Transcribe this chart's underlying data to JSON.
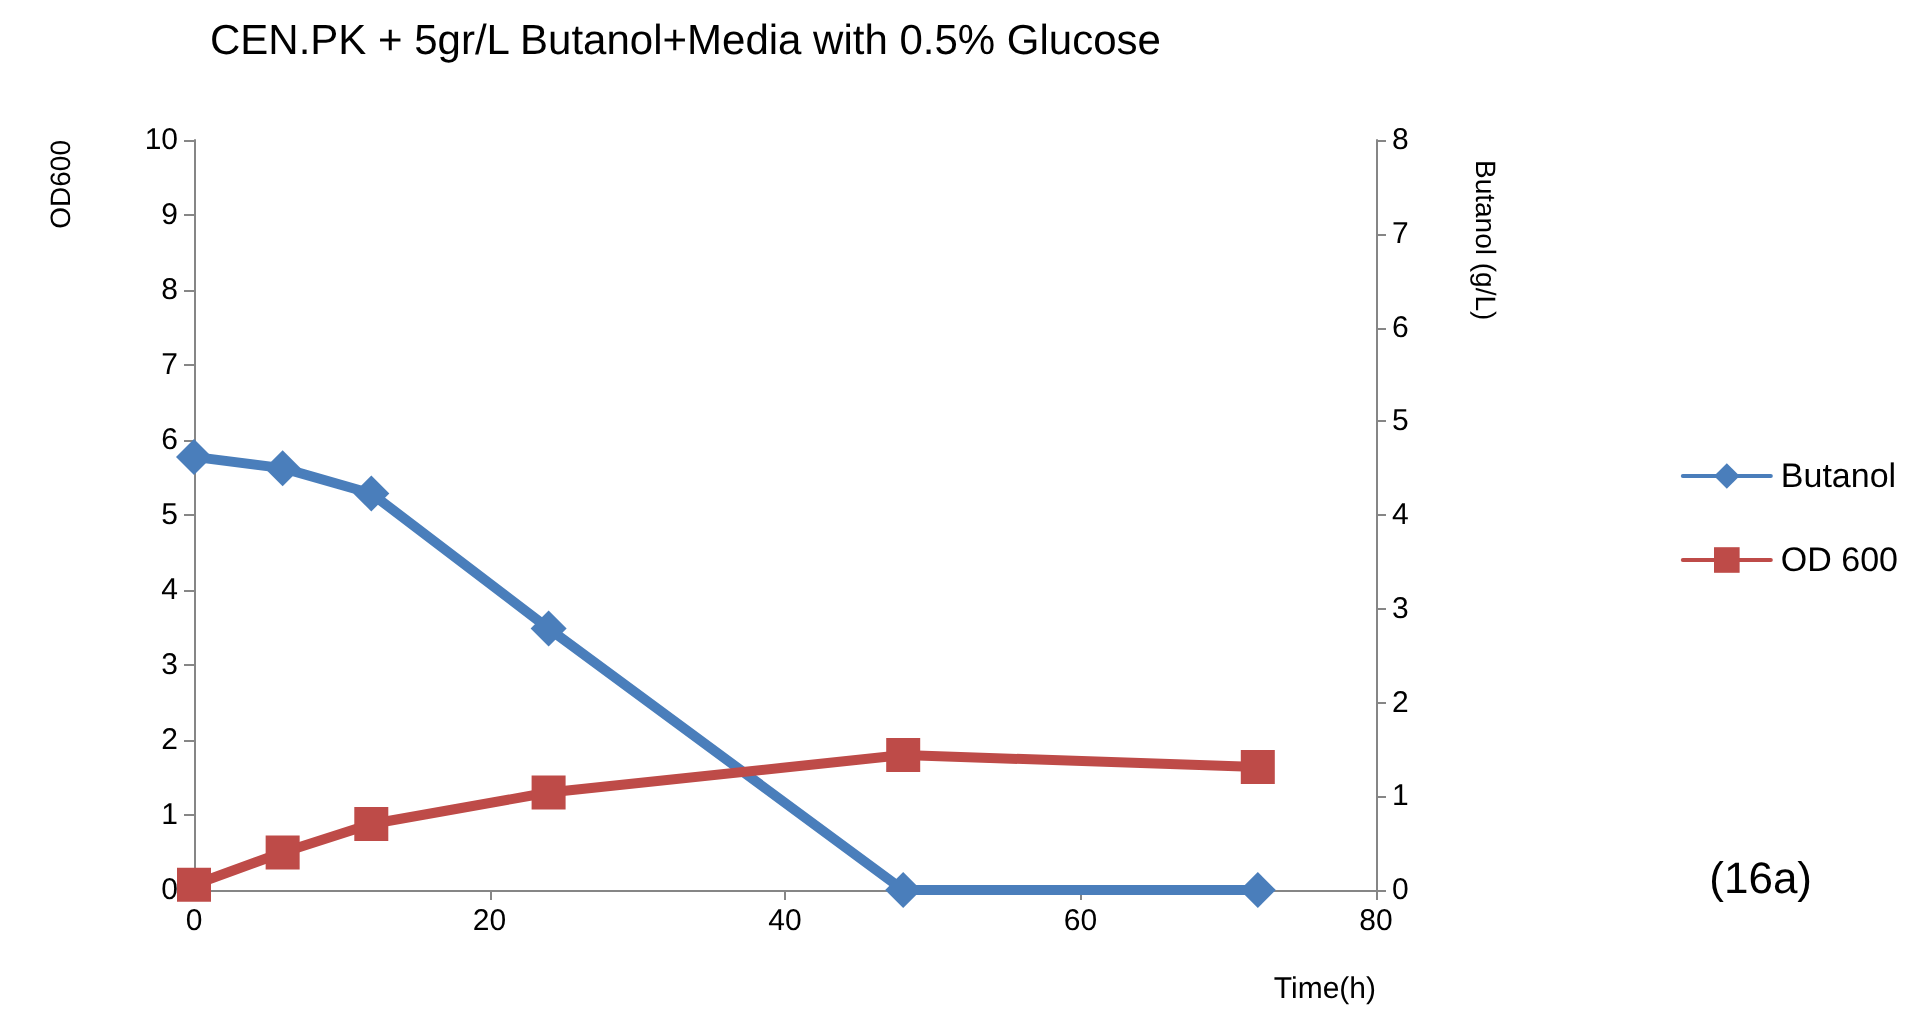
{
  "chart_data": {
    "type": "line",
    "title": "CEN.PK + 5gr/L Butanol+Media with 0.5% Glucose",
    "xlabel": "Time(h)",
    "ylabel": "OD600",
    "y2label": "Butanol (g/L)",
    "annotations": [
      "(16a)"
    ],
    "x": [
      0,
      6,
      12,
      24,
      48,
      72
    ],
    "series": [
      {
        "name": "Butanol",
        "color": "#4a7ebb",
        "axis": "y2",
        "marker": "diamond",
        "values": [
          4.62,
          4.5,
          4.23,
          2.79,
          0,
          0
        ]
      },
      {
        "name": "OD 600",
        "color": "#be4b48",
        "marker": "square",
        "values": [
          0.07,
          0.5,
          0.88,
          1.3,
          1.8,
          1.64
        ]
      }
    ],
    "xlim": [
      0,
      80
    ],
    "xticks": [
      0,
      20,
      40,
      60,
      80
    ],
    "ylim": [
      0,
      10
    ],
    "yticks": [
      0,
      1,
      2,
      3,
      4,
      5,
      6,
      7,
      8,
      9,
      10
    ],
    "y2lim": [
      0,
      8
    ],
    "y2ticks": [
      0,
      1,
      2,
      3,
      4,
      5,
      6,
      7,
      8
    ],
    "grid": false,
    "legend": "right",
    "line_style": "solid"
  }
}
